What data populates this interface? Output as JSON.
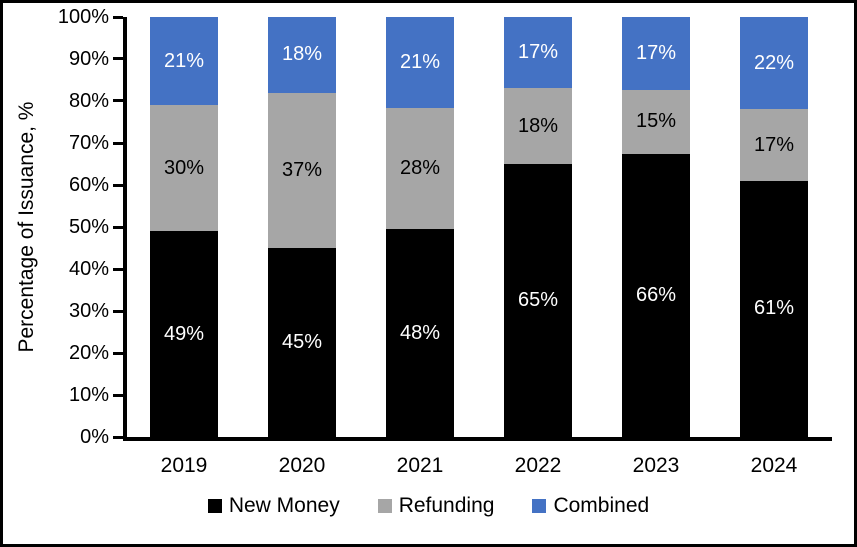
{
  "chart_data": {
    "type": "bar",
    "stacked": true,
    "title": "",
    "xlabel": "",
    "ylabel": "Percentage of Issuance, %",
    "ylim": [
      0,
      100
    ],
    "ytick_step": 10,
    "ytick_labels": [
      "0%",
      "10%",
      "20%",
      "30%",
      "40%",
      "50%",
      "60%",
      "70%",
      "80%",
      "90%",
      "100%"
    ],
    "categories": [
      "2019",
      "2020",
      "2021",
      "2022",
      "2023",
      "2024"
    ],
    "series": [
      {
        "name": "New Money",
        "color": "#000000",
        "label_color": "#FFFFFF",
        "values": [
          49,
          45,
          48,
          65,
          66,
          61
        ],
        "labels": [
          "49%",
          "45%",
          "48%",
          "65%",
          "66%",
          "61%"
        ]
      },
      {
        "name": "Refunding",
        "color": "#A6A6A6",
        "label_color": "#000000",
        "values": [
          30,
          37,
          28,
          18,
          15,
          17
        ],
        "labels": [
          "30%",
          "37%",
          "28%",
          "18%",
          "15%",
          "17%"
        ]
      },
      {
        "name": "Combined",
        "color": "#4472C4",
        "label_color": "#FFFFFF",
        "values": [
          21,
          18,
          21,
          17,
          17,
          22
        ],
        "labels": [
          "21%",
          "18%",
          "21%",
          "17%",
          "17%",
          "22%"
        ]
      }
    ],
    "legend_position": "bottom",
    "grid": false,
    "background_color": "#FFFFFF",
    "border_color": "#000000"
  }
}
